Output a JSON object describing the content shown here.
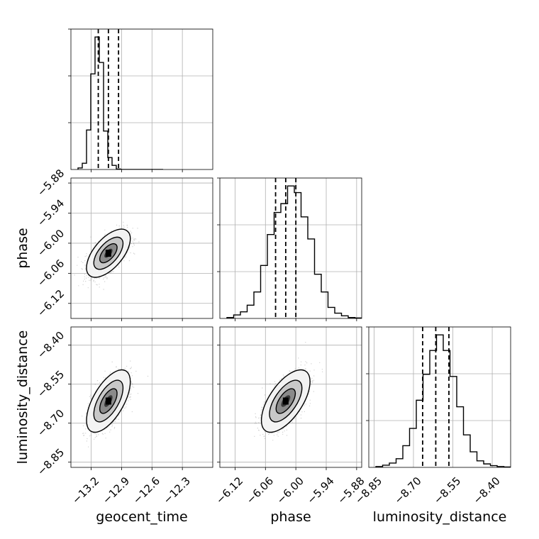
{
  "chart_data": {
    "type": "corner",
    "parameters": [
      {
        "name": "geocent_time",
        "label": "geocent_time",
        "range": [
          -13.4,
          -12.0
        ],
        "ticks": [
          -13.2,
          -12.9,
          -12.6,
          -12.3
        ],
        "tick_labels": [
          "−13.2",
          "−12.9",
          "−12.6",
          "−12.3"
        ],
        "mean": -13.03,
        "sd": 0.09,
        "quantiles": [
          -13.13,
          -13.03,
          -12.93
        ]
      },
      {
        "name": "phase",
        "label": "phase",
        "range": [
          -6.15,
          -5.87
        ],
        "ticks": [
          -6.12,
          -6.06,
          -6.0,
          -5.94,
          -5.88
        ],
        "tick_labels": [
          "−6.12",
          "−6.06",
          "−6.00",
          "−5.94",
          "−5.88"
        ],
        "mean": -6.02,
        "sd": 0.02,
        "quantiles": [
          -6.04,
          -6.02,
          -6.0
        ]
      },
      {
        "name": "luminosity_distance",
        "label": "luminosity_distance",
        "range": [
          -8.87,
          -8.33
        ],
        "ticks": [
          -8.85,
          -8.7,
          -8.55,
          -8.4
        ],
        "tick_labels": [
          "−8.85",
          "−8.70",
          "−8.55",
          "−8.40"
        ],
        "mean": -8.615,
        "sd": 0.05,
        "quantiles": [
          -8.665,
          -8.615,
          -8.565
        ]
      }
    ],
    "correlations": {
      "0-1": 0.6,
      "0-2": 0.62,
      "1-2": 0.62
    },
    "histograms": [
      {
        "param": "geocent_time",
        "bins": 20,
        "counts": [
          3,
          12,
          76,
          184,
          255,
          206,
          74,
          23,
          8,
          1,
          0,
          0,
          0,
          0,
          0,
          0,
          0,
          0,
          0,
          0
        ]
      },
      {
        "param": "phase",
        "bins": 20,
        "counts": [
          2,
          8,
          15,
          30,
          60,
          120,
          190,
          240,
          260,
          300,
          285,
          230,
          180,
          100,
          60,
          25,
          12,
          6,
          2,
          1
        ]
      },
      {
        "param": "luminosity_distance",
        "bins": 20,
        "counts": [
          2,
          5,
          10,
          20,
          50,
          90,
          155,
          215,
          270,
          306,
          270,
          210,
          140,
          75,
          36,
          15,
          8,
          4,
          2,
          1
        ]
      }
    ],
    "quantile_levels": [
      0.16,
      0.5,
      0.84
    ],
    "grid": true,
    "colors": {
      "hist": "#000000",
      "points": "#7f7f7f",
      "grid": "#b0b0b0"
    }
  }
}
